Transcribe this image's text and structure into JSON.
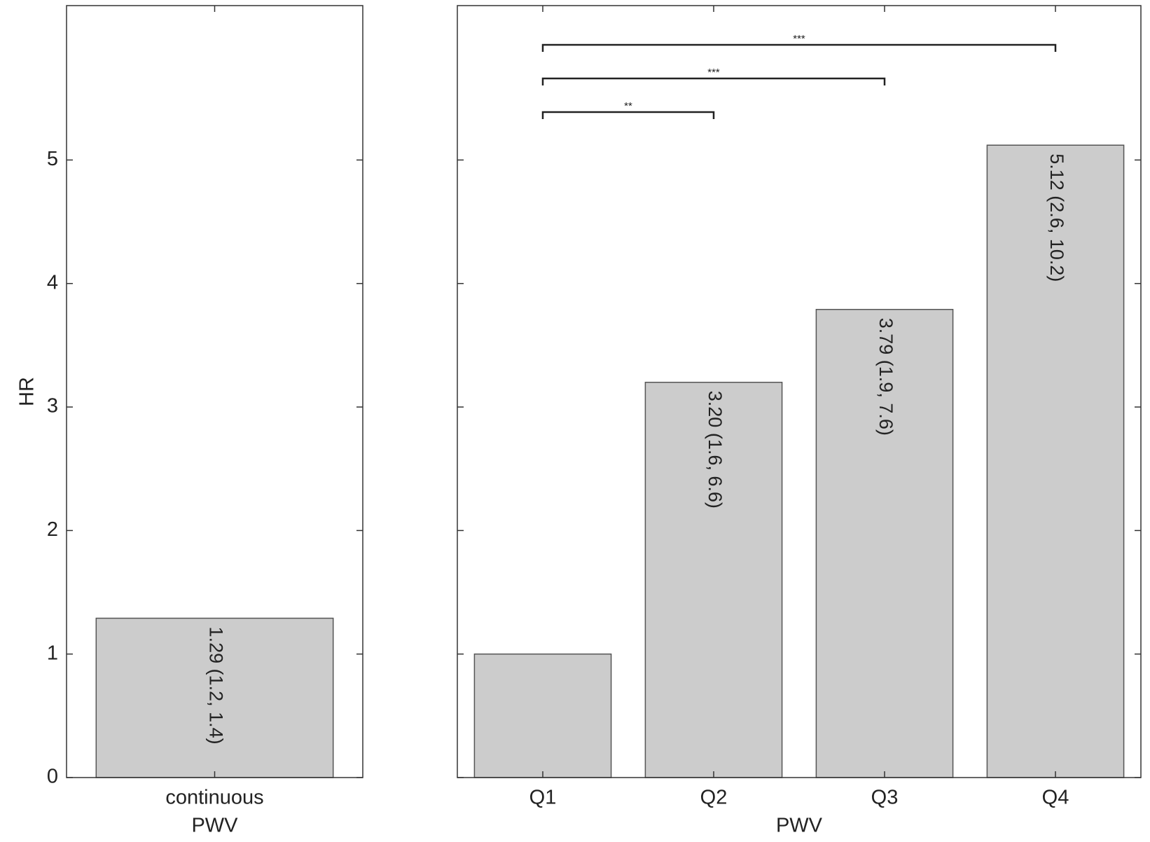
{
  "chart_data": [
    {
      "type": "bar",
      "y_label": "HR",
      "x_label": "PWV",
      "categories": [
        "continuous"
      ],
      "values": [
        1.29
      ],
      "value_labels": [
        "1.29 (1.2, 1.4)"
      ],
      "color": "#cccccc",
      "ylim": [
        0,
        6.25
      ],
      "yticks": [
        0,
        1,
        2,
        3,
        4,
        5
      ]
    },
    {
      "type": "bar",
      "x_label": "PWV",
      "categories": [
        "Q1",
        "Q2",
        "Q3",
        "Q4"
      ],
      "values": [
        1,
        3.2,
        3.79,
        5.12
      ],
      "value_labels": [
        null,
        "3.20 (1.6, 6.6)",
        "3.79 (1.9, 7.6)",
        "5.12 (2.6, 10.2)"
      ],
      "color": "#cccccc",
      "ylim": [
        0,
        6.25
      ],
      "yticks": [
        0,
        1,
        2,
        3,
        4,
        5
      ],
      "annotations": [
        {
          "from": 0,
          "to": 1,
          "label": "**"
        },
        {
          "from": 0,
          "to": 2,
          "label": "***"
        },
        {
          "from": 0,
          "to": 3,
          "label": "***"
        }
      ]
    }
  ]
}
